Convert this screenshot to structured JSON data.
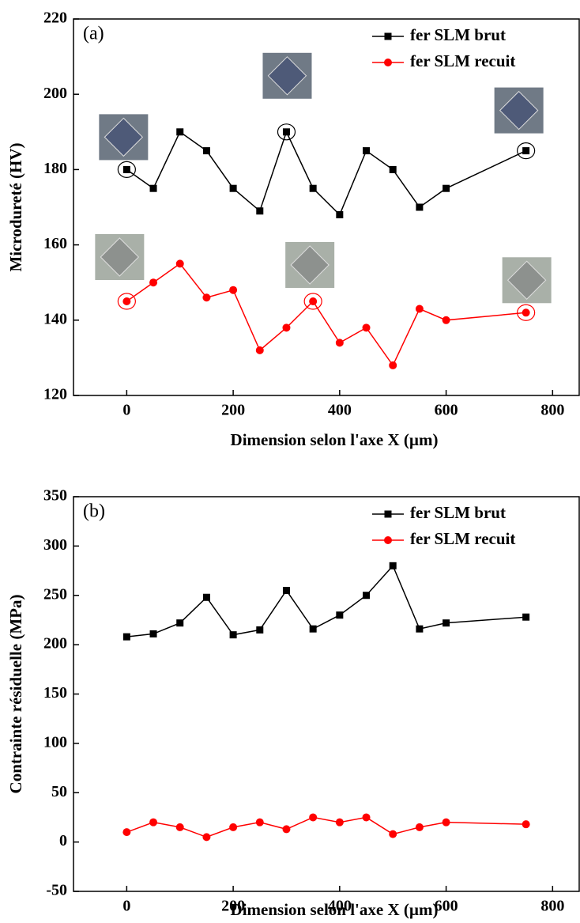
{
  "chart_data": [
    {
      "type": "line",
      "panel_label": "(a)",
      "x_label": "Dimension selon l'axe X (µm)",
      "y_label": "Microdureté (HV)",
      "x": [
        0,
        50,
        100,
        150,
        200,
        250,
        300,
        350,
        400,
        450,
        500,
        550,
        600,
        750
      ],
      "xlim": [
        -100,
        850
      ],
      "xticks": [
        0,
        200,
        400,
        600,
        800
      ],
      "ylim": [
        120,
        220
      ],
      "yticks": [
        120,
        140,
        160,
        180,
        200,
        220
      ],
      "legend": "upper right",
      "series": [
        {
          "name": "fer SLM brut",
          "color": "#000000",
          "marker": "square",
          "values": [
            180,
            175,
            190,
            185,
            175,
            169,
            190,
            175,
            168,
            185,
            180,
            170,
            175,
            185
          ]
        },
        {
          "name": "fer SLM recuit",
          "color": "#ff0000",
          "marker": "circle",
          "values": [
            145,
            150,
            155,
            146,
            148,
            132,
            138,
            145,
            134,
            138,
            128,
            143,
            140,
            142
          ]
        }
      ]
    },
    {
      "type": "line",
      "panel_label": "(b)",
      "x_label": "Dimension selon l'axe X (µm)",
      "y_label": "Contrainte résiduelle (MPa)",
      "x": [
        0,
        50,
        100,
        150,
        200,
        250,
        300,
        350,
        400,
        450,
        500,
        550,
        600,
        750
      ],
      "xlim": [
        -100,
        850
      ],
      "xticks": [
        0,
        200,
        400,
        600,
        800
      ],
      "ylim": [
        -50,
        350
      ],
      "yticks": [
        -50,
        0,
        50,
        100,
        150,
        200,
        250,
        300,
        350
      ],
      "legend": "upper right",
      "series": [
        {
          "name": "fer SLM brut",
          "color": "#000000",
          "marker": "square",
          "values": [
            208,
            211,
            222,
            248,
            210,
            215,
            255,
            216,
            230,
            250,
            280,
            216,
            222,
            228
          ]
        },
        {
          "name": "fer SLM recuit",
          "color": "#ff0000",
          "marker": "circle",
          "values": [
            10,
            20,
            15,
            5,
            15,
            20,
            13,
            25,
            20,
            25,
            8,
            15,
            20,
            18
          ]
        }
      ]
    }
  ]
}
